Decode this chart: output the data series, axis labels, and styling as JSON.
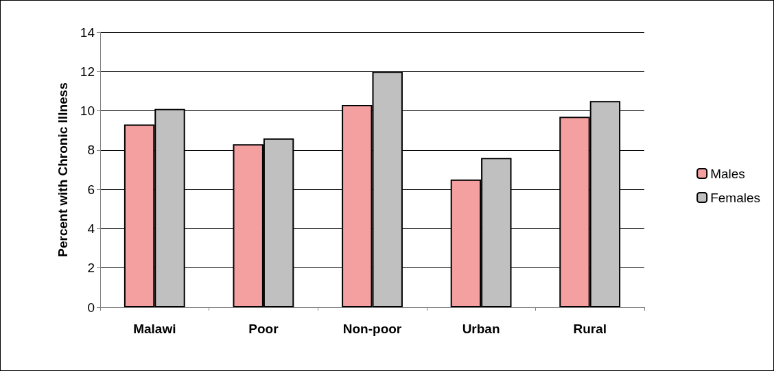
{
  "chart_data": {
    "type": "bar",
    "ylabel": "Percent with Chronic Illness",
    "categories": [
      "Malawi",
      "Poor",
      "Non-poor",
      "Urban",
      "Rural"
    ],
    "series": [
      {
        "name": "Males",
        "color": "#f4a0a0",
        "values": [
          9.3,
          8.3,
          10.3,
          6.5,
          9.7
        ]
      },
      {
        "name": "Females",
        "color": "#c0c0c0",
        "values": [
          10.1,
          8.6,
          12.0,
          7.6,
          10.5
        ]
      }
    ],
    "ylim": [
      0,
      14
    ],
    "yticks": [
      0,
      2,
      4,
      6,
      8,
      10,
      12,
      14
    ],
    "grid": "y",
    "legend": "right"
  }
}
